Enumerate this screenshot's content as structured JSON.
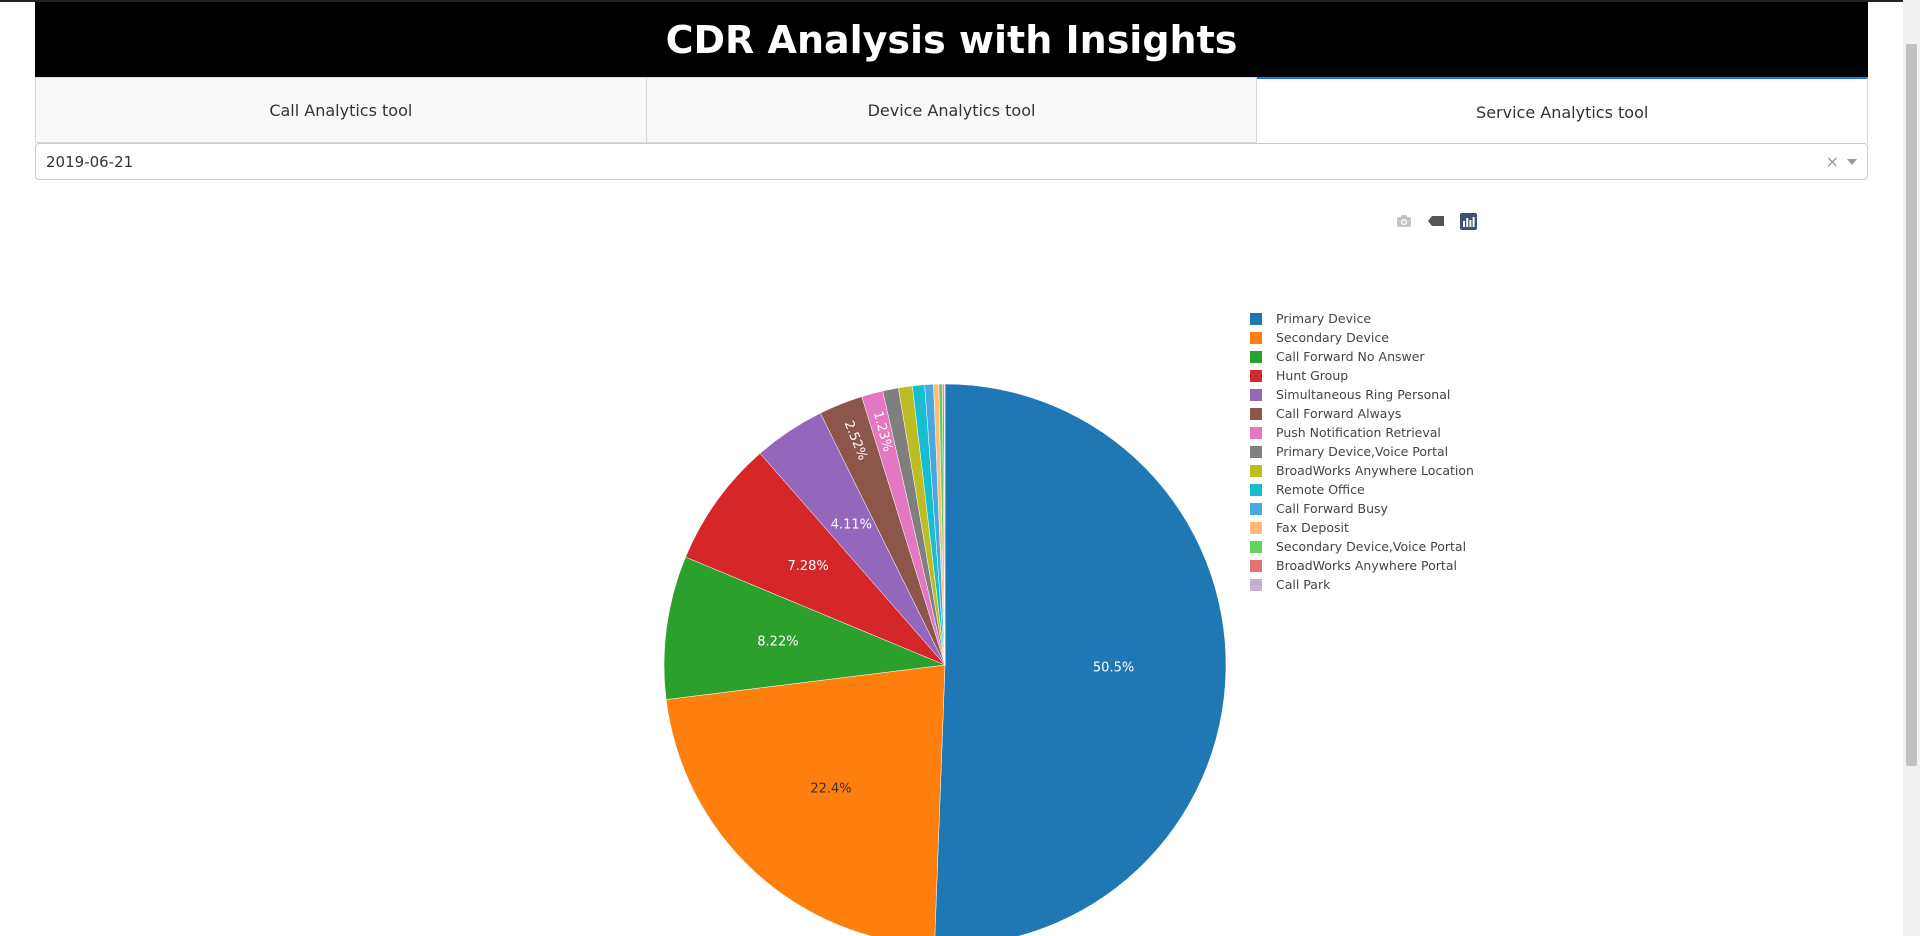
{
  "header": {
    "title": "CDR Analysis with Insights"
  },
  "tabs": [
    {
      "label": "Call Analytics tool",
      "active": false
    },
    {
      "label": "Device Analytics tool",
      "active": false
    },
    {
      "label": "Service Analytics tool",
      "active": true
    }
  ],
  "date_dropdown": {
    "value": "2019-06-21",
    "clear_symbol": "×"
  },
  "modebar": {
    "icons": [
      "camera-icon",
      "tag-icon",
      "plotly-logo-icon"
    ]
  },
  "chart_data": {
    "type": "pie",
    "direction": "clockwise",
    "start_angle_deg": 0,
    "labels": [
      "Primary Device",
      "Secondary Device",
      "Call Forward No Answer",
      "Hunt Group",
      "Simultaneous Ring Personal",
      "Call Forward Always",
      "Push Notification Retrieval",
      "Primary Device,Voice Portal",
      "BroadWorks Anywhere Location",
      "Remote Office",
      "Call Forward Busy",
      "Fax Deposit",
      "Secondary Device,Voice Portal",
      "BroadWorks Anywhere Portal",
      "Call Park"
    ],
    "values": [
      50.5,
      22.4,
      8.22,
      7.28,
      4.11,
      2.52,
      1.23,
      0.9,
      0.8,
      0.7,
      0.5,
      0.3,
      0.2,
      0.1,
      0.05
    ],
    "slice_labels": [
      "50.5%",
      "22.4%",
      "8.22%",
      "7.28%",
      "4.11%",
      "2.52%",
      "1.23%",
      "",
      "",
      "",
      "",
      "",
      "",
      "",
      ""
    ],
    "colors": [
      "#1f77b4",
      "#ff7f0e",
      "#2ca02c",
      "#d62728",
      "#9467bd",
      "#8c564b",
      "#e377c2",
      "#7f7f7f",
      "#bcbd22",
      "#17becf",
      "#4aa8e0",
      "#ffbb78",
      "#5fd35f",
      "#e57373",
      "#c5b0d5"
    ],
    "legend_position": "right"
  }
}
